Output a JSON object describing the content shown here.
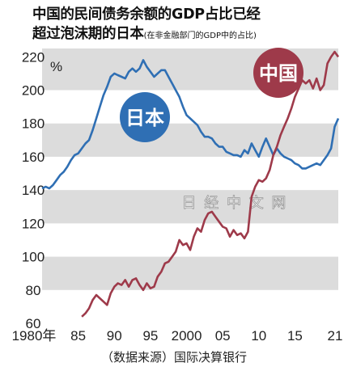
{
  "title": {
    "line1": "中国的民间债务余额的GDP占比已经",
    "line2": "超过泡沫期的日本",
    "line2_note": "(在非金融部门的GDP中的占比)"
  },
  "source": "（数据来源）国际决算银行",
  "watermark": "日 经 中 文 网",
  "colors": {
    "japan": "#2f6fb4",
    "china": "#9e3a4a",
    "band": "#dcdcdc"
  },
  "chart_data": {
    "type": "line",
    "title": "中国的民间债务余额的GDP占比已经超过泡沫期的日本",
    "xlabel": "",
    "ylabel": "%",
    "xlim": [
      1980,
      2021
    ],
    "ylim": [
      60,
      225
    ],
    "grid": "alternating horizontal bands",
    "x_ticks": [
      1980,
      1985,
      1990,
      1995,
      2000,
      2005,
      2010,
      2015,
      2021
    ],
    "x_tick_labels": [
      "1980年",
      "85",
      "90",
      "95",
      "2000",
      "05",
      "10",
      "15",
      "21"
    ],
    "y_ticks": [
      60,
      80,
      100,
      120,
      140,
      160,
      180,
      200,
      220
    ],
    "y_tick_labels": [
      "60",
      "80",
      "100",
      "120",
      "140",
      "160",
      "180",
      "200",
      "220"
    ],
    "series": [
      {
        "name": "日本",
        "x": [
          1980,
          1980.5,
          1981,
          1981.5,
          1982,
          1982.5,
          1983,
          1983.5,
          1984,
          1984.5,
          1985,
          1985.5,
          1986,
          1986.5,
          1987,
          1987.5,
          1988,
          1988.5,
          1989,
          1989.5,
          1990,
          1990.5,
          1991,
          1991.5,
          1992,
          1992.5,
          1993,
          1993.5,
          1994,
          1994.5,
          1995,
          1995.5,
          1996,
          1996.5,
          1997,
          1997.5,
          1998,
          1998.5,
          1999,
          1999.5,
          2000,
          2000.5,
          2001,
          2001.5,
          2002,
          2002.5,
          2003,
          2003.5,
          2004,
          2004.5,
          2005,
          2005.5,
          2006,
          2006.5,
          2007,
          2007.5,
          2008,
          2008.5,
          2009,
          2009.5,
          2010,
          2010.5,
          2011,
          2011.5,
          2012,
          2012.5,
          2013,
          2013.5,
          2014,
          2014.5,
          2015,
          2015.5,
          2016,
          2016.5,
          2017,
          2017.5,
          2018,
          2018.5,
          2019,
          2019.5,
          2020,
          2020.5,
          2021
        ],
        "values": [
          141,
          142,
          141,
          143,
          146,
          149,
          151,
          154,
          158,
          161,
          162,
          165,
          168,
          170,
          176,
          183,
          190,
          197,
          202,
          208,
          210,
          209,
          208,
          207,
          211,
          213,
          211,
          213,
          218,
          214,
          211,
          208,
          210,
          212,
          212,
          208,
          204,
          200,
          196,
          190,
          185,
          183,
          181,
          179,
          175,
          172,
          172,
          171,
          168,
          166,
          166,
          163,
          162,
          161,
          161,
          160,
          164,
          162,
          168,
          164,
          160,
          166,
          171,
          166,
          161,
          165,
          162,
          160,
          159,
          158,
          156,
          155,
          153,
          153,
          154,
          155,
          156,
          155,
          158,
          161,
          165,
          178,
          183
        ]
      },
      {
        "name": "中国",
        "x": [
          1985.5,
          1986,
          1986.5,
          1987,
          1987.5,
          1988,
          1988.5,
          1989,
          1989.5,
          1990,
          1990.5,
          1991,
          1991.5,
          1992,
          1992.5,
          1993,
          1993.5,
          1994,
          1994.5,
          1995,
          1995.5,
          1996,
          1996.5,
          1997,
          1997.5,
          1998,
          1998.5,
          1999,
          1999.5,
          2000,
          2000.5,
          2001,
          2001.5,
          2002,
          2002.5,
          2003,
          2003.5,
          2004,
          2004.5,
          2005,
          2005.5,
          2006,
          2006.5,
          2007,
          2007.5,
          2008,
          2008.5,
          2009,
          2009.5,
          2010,
          2010.5,
          2011,
          2011.5,
          2012,
          2012.5,
          2013,
          2013.5,
          2014,
          2014.5,
          2015,
          2015.5,
          2016,
          2016.5,
          2017,
          2017.5,
          2018,
          2018.5,
          2019,
          2019.5,
          2020,
          2020.5,
          2021
        ],
        "values": [
          64,
          66,
          69,
          74,
          77,
          75,
          73,
          71,
          78,
          82,
          84,
          83,
          86,
          82,
          86,
          87,
          83,
          80,
          84,
          81,
          82,
          88,
          91,
          96,
          97,
          100,
          103,
          110,
          107,
          108,
          104,
          112,
          117,
          115,
          122,
          126,
          127,
          124,
          121,
          118,
          117,
          112,
          116,
          113,
          114,
          111,
          115,
          136,
          142,
          146,
          145,
          147,
          152,
          161,
          166,
          173,
          178,
          183,
          189,
          196,
          201,
          206,
          204,
          206,
          201,
          207,
          200,
          203,
          216,
          220,
          223,
          220
        ]
      }
    ],
    "series_labels": [
      "日本",
      "中国"
    ],
    "legend": "inline labels"
  }
}
